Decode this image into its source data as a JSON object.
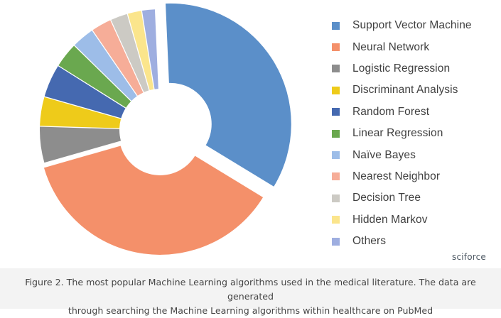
{
  "chart_data": {
    "type": "pie",
    "title": "",
    "donut": true,
    "exploded": true,
    "legend_position": "right",
    "categories": [
      "Support Vector Machine",
      "Neural Network",
      "Logistic Regression",
      "Discriminant Analysis",
      "Random Forest",
      "Linear Regression",
      "Naïve Bayes",
      "Nearest Neighbor",
      "Decision Tree",
      "Hidden Markov",
      "Others"
    ],
    "values": [
      32.2,
      34.5,
      4.6,
      3.7,
      4.2,
      3.2,
      2.9,
      2.6,
      2.2,
      1.8,
      1.7
    ],
    "colors": [
      "#5b8fc9",
      "#f4906a",
      "#8d8d8d",
      "#eecb1a",
      "#4569b0",
      "#6aa84f",
      "#9dbde8",
      "#f6ad98",
      "#cccac4",
      "#fbe58c",
      "#9eaee0"
    ]
  },
  "watermark": "sciforce",
  "caption": {
    "line1": "Figure 2. The most popular Machine Learning algorithms used in the medical literature. The data are generated",
    "line2": "through searching the Machine Learning algorithms within healthcare on PubMed"
  }
}
